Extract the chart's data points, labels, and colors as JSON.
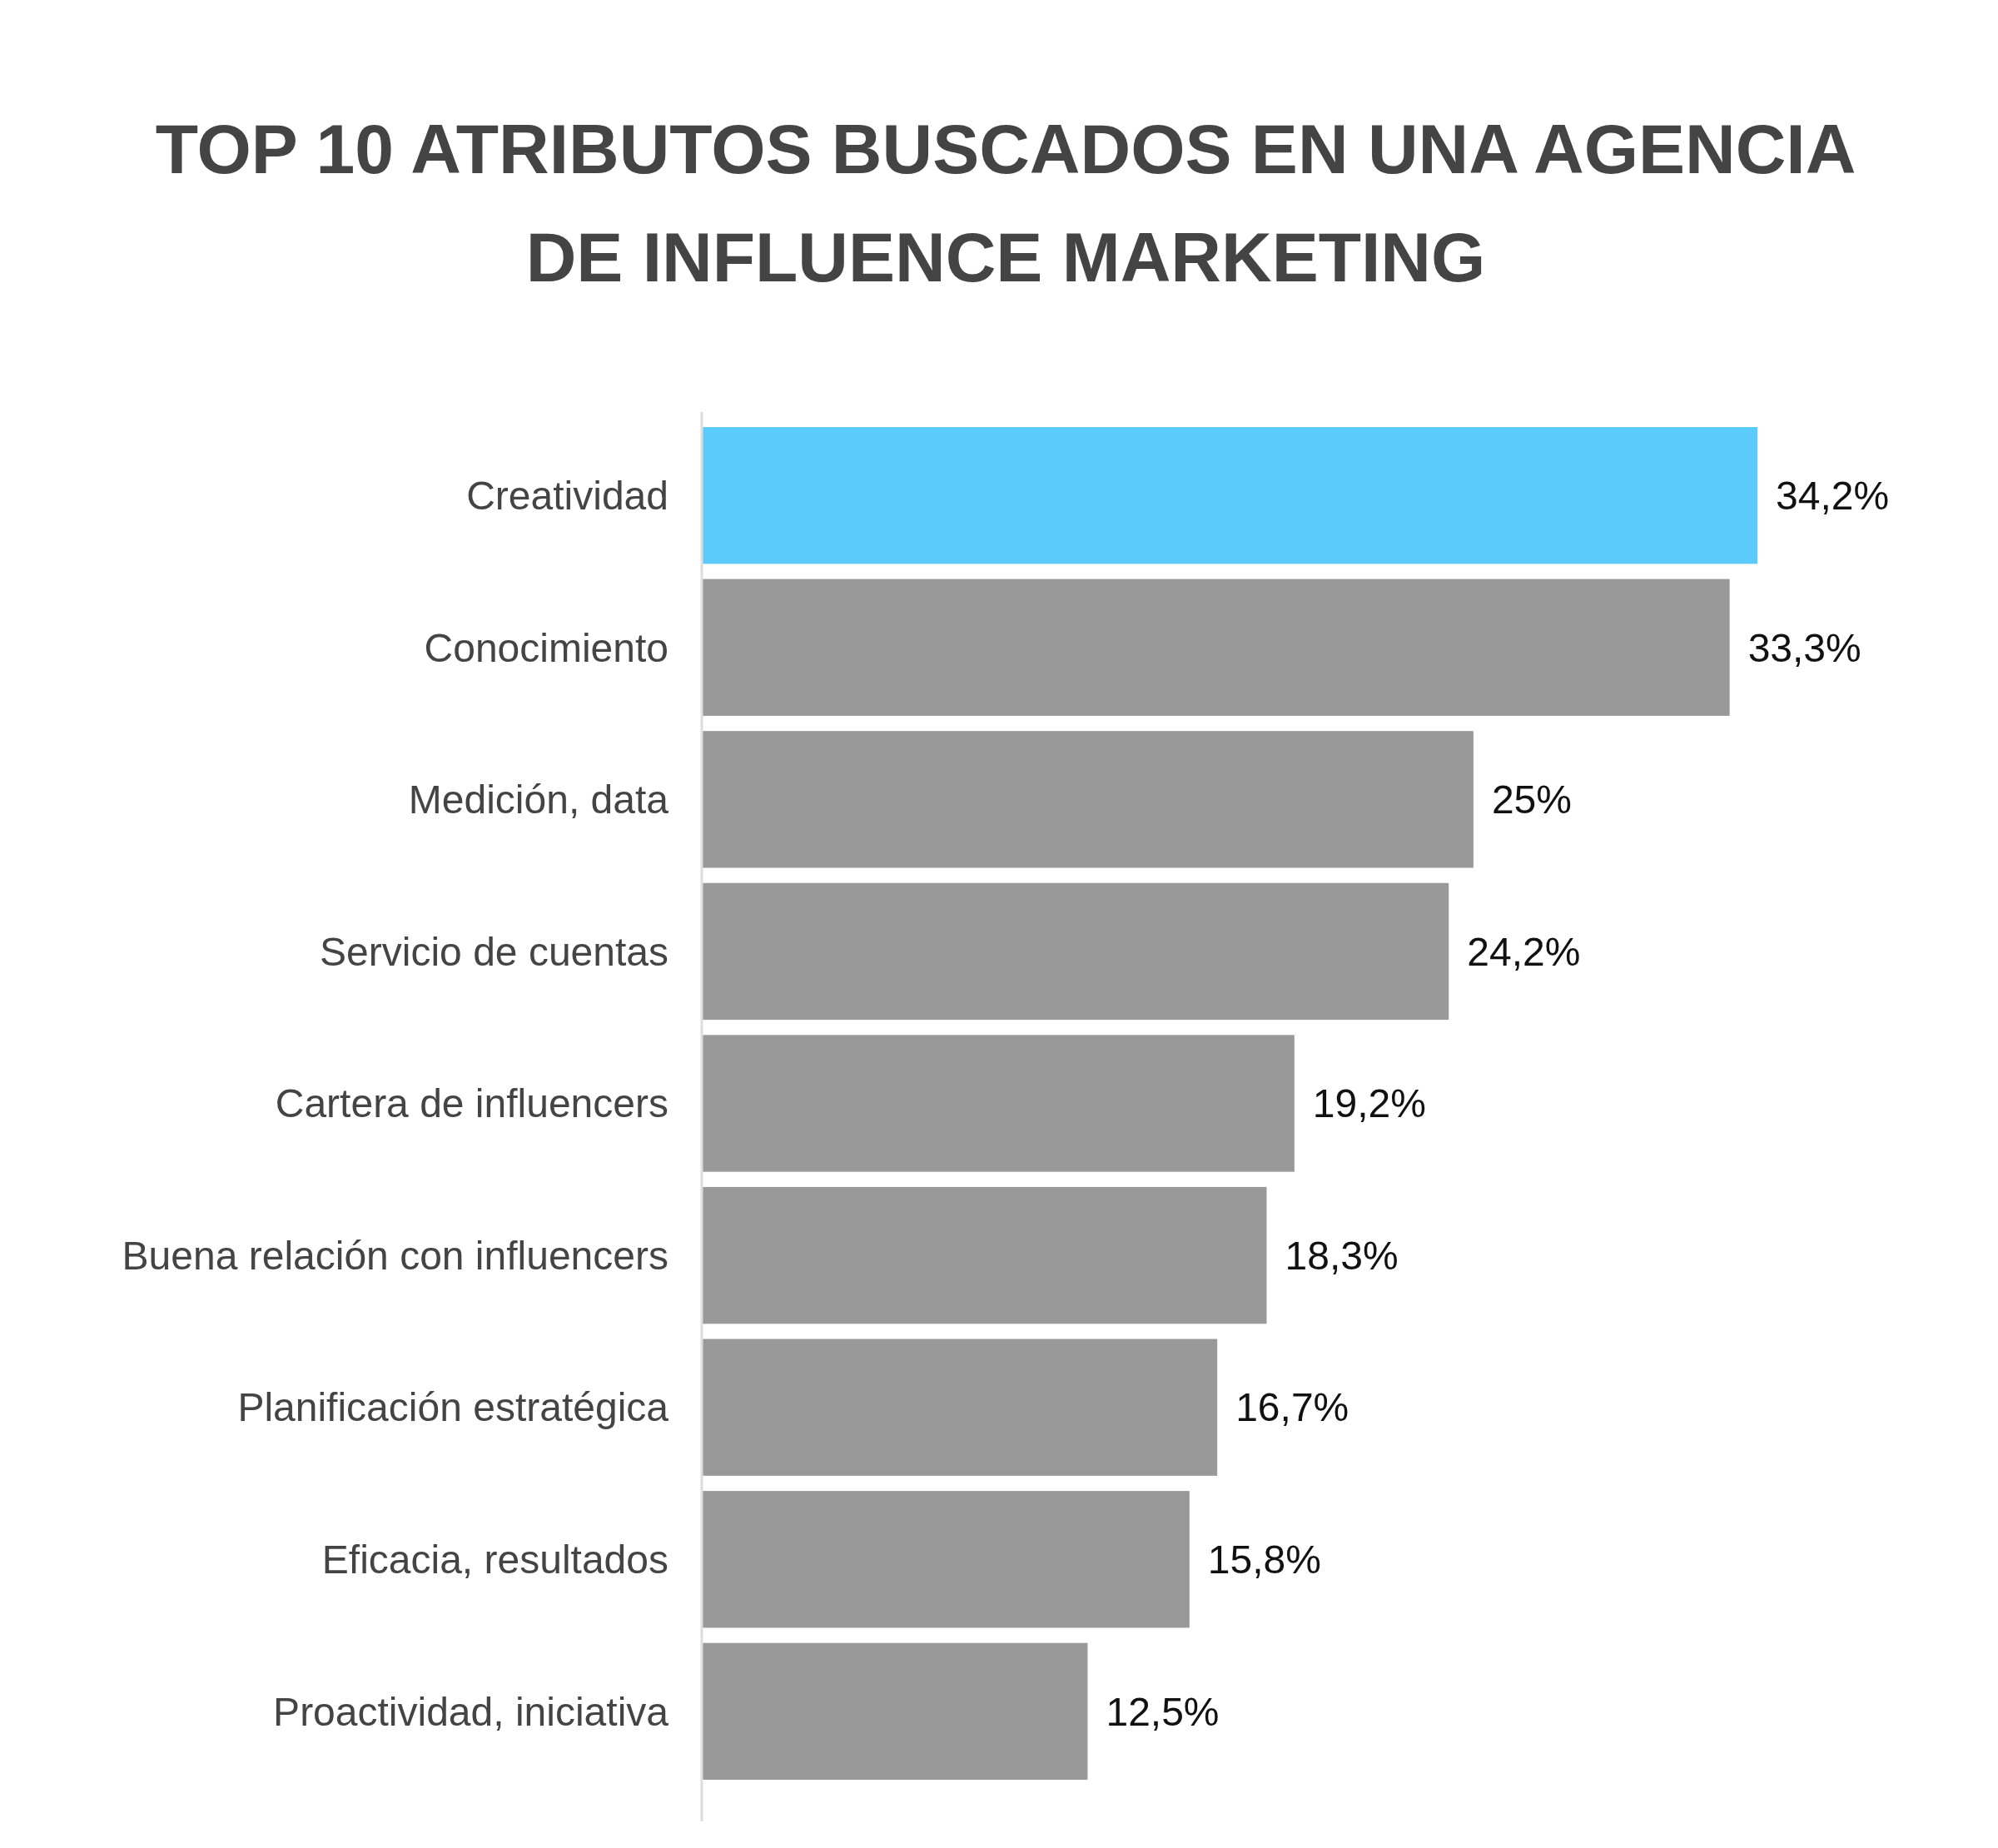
{
  "chart_data": {
    "type": "bar",
    "orientation": "horizontal",
    "title": "TOP 10 ATRIBUTOS BUSCADOS EN UNA AGENCIA DE INFLUENCE MARKETING",
    "categories": [
      "Creatividad",
      "Conocimiento",
      "Medición, data",
      "Servicio de cuentas",
      "Cartera de influencers",
      "Buena relación con influencers",
      "Planificación estratégica",
      "Eficacia, resultados",
      "Proactividad, iniciativa"
    ],
    "values": [
      34.2,
      33.3,
      25,
      24.2,
      19.2,
      18.3,
      16.7,
      15.8,
      12.5
    ],
    "value_labels": [
      "34,2%",
      "33,3%",
      "25%",
      "24,2%",
      "19,2%",
      "18,3%",
      "16,7%",
      "15,8%",
      "12,5%"
    ],
    "colors": [
      "#5bcbfc",
      "#999999",
      "#999999",
      "#999999",
      "#999999",
      "#999999",
      "#999999",
      "#999999",
      "#999999"
    ]
  }
}
